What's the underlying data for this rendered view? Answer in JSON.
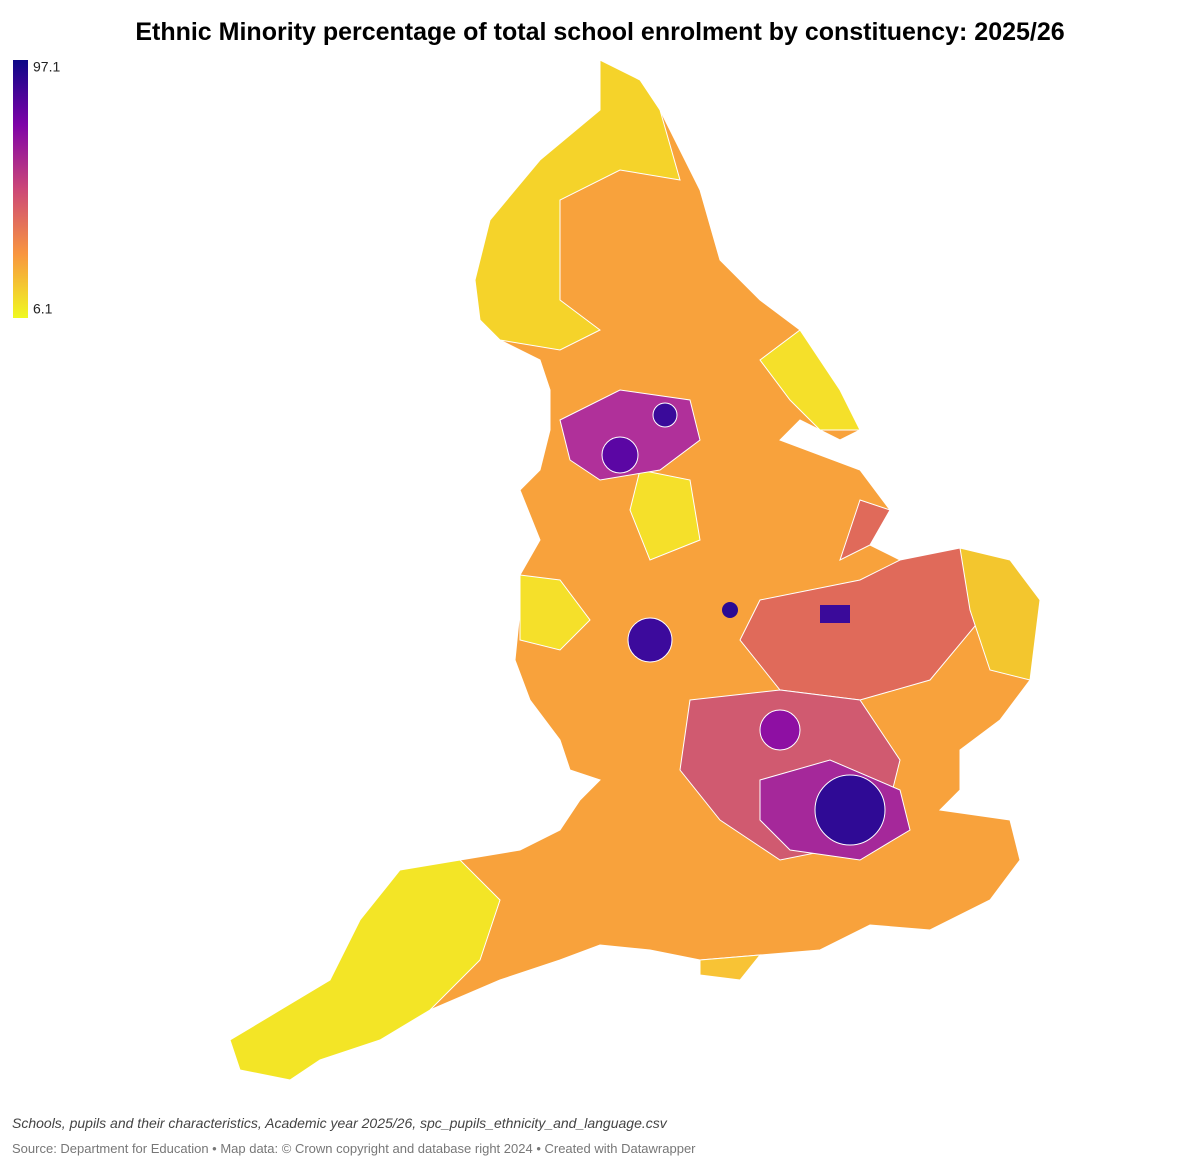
{
  "title": "Ethnic Minority percentage of total school enrolment by constituency: 2025/26",
  "legend": {
    "max": 97.1,
    "min": 6.1,
    "colors": [
      "#0d0887",
      "#7e03a8",
      "#cc4778",
      "#f89540",
      "#f0f921"
    ]
  },
  "notes": "Schools, pupils and their characteristics, Academic year 2025/26, spc_pupils_ethnicity_and_language.csv",
  "source": "Source: Department for Education • Map data: © Crown copyright and database right 2024  • Created with Datawrapper"
}
